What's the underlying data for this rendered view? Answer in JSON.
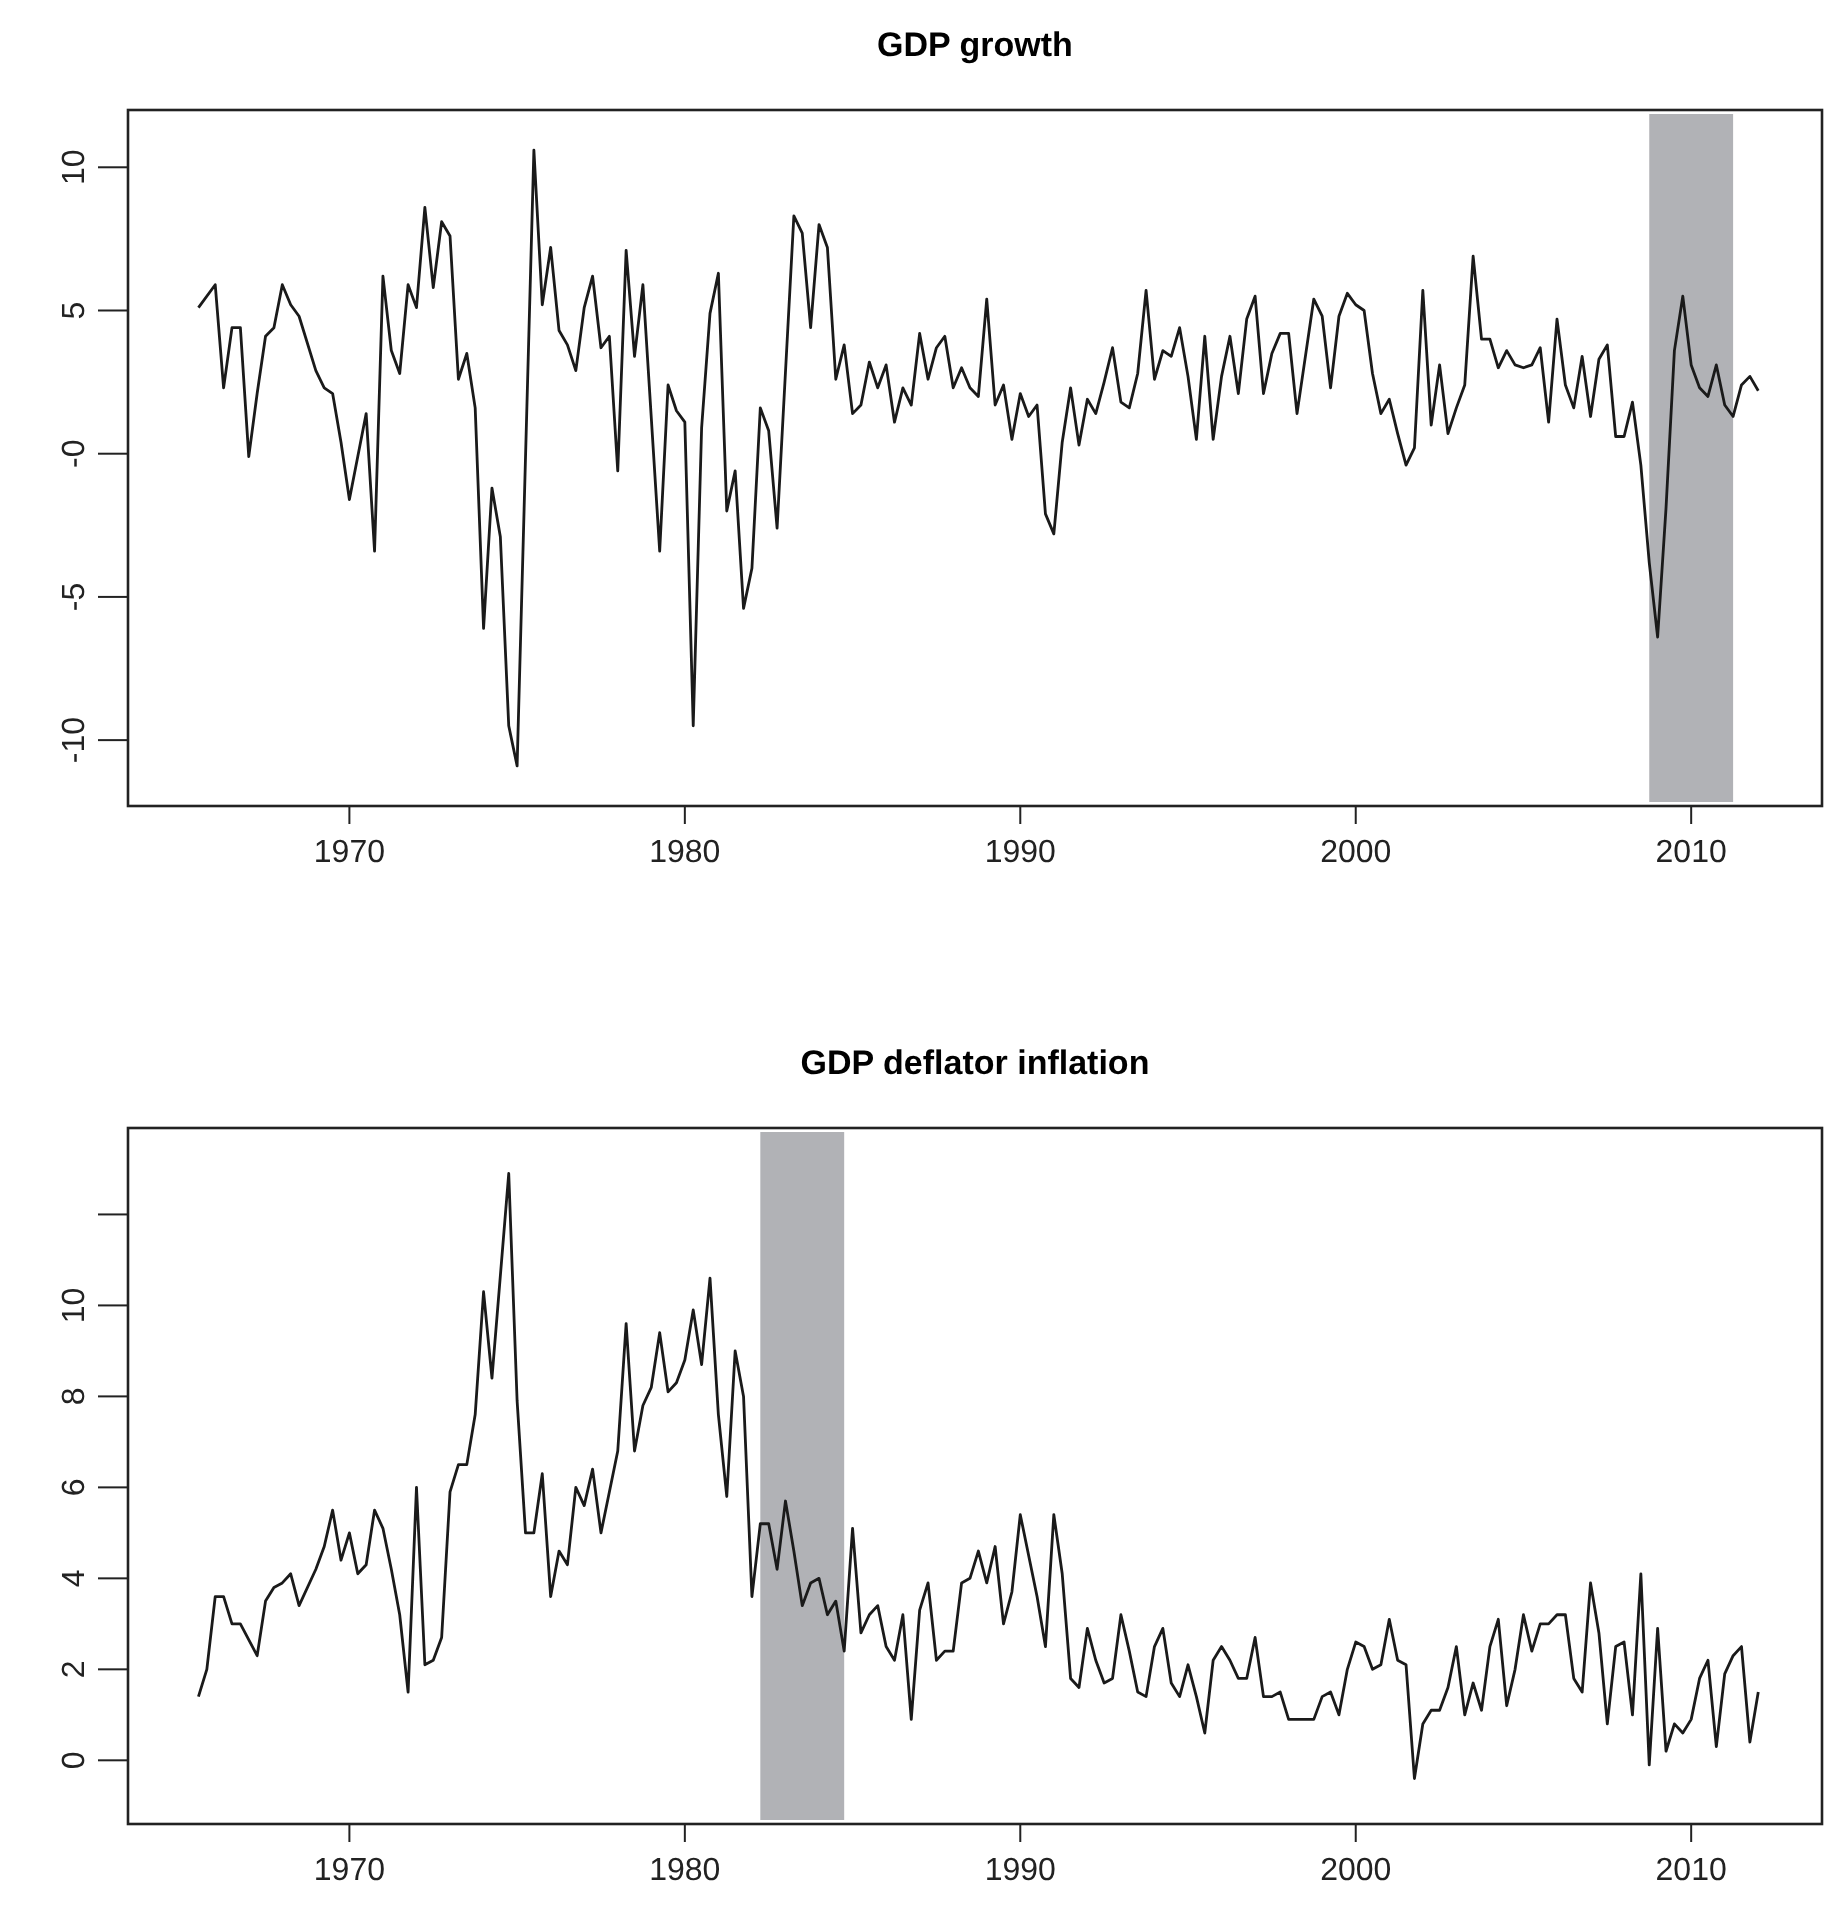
{
  "chart_data": [
    {
      "type": "line",
      "title": "GDP growth",
      "xlim": [
        1963.4,
        2013.9
      ],
      "ylim": [
        -12.3,
        12.0
      ],
      "xticks": [
        1970,
        1980,
        1990,
        2000,
        2010
      ],
      "yticks": [
        10,
        5,
        {
          "value": 0,
          "label": "-0"
        },
        -5,
        -10
      ],
      "bands": [
        {
          "axis": "x",
          "from": 2008.75,
          "to": 2011.25,
          "color": "#b1b2b6"
        }
      ],
      "x": [
        1965.5,
        1966,
        1966.25,
        1966.5,
        1966.75,
        1967,
        1967.25,
        1967.5,
        1967.75,
        1968,
        1968.25,
        1968.5,
        1969,
        1969.25,
        1969.5,
        1969.75,
        1970,
        1970.25,
        1970.5,
        1970.75,
        1971,
        1971.25,
        1971.5,
        1971.75,
        1972,
        1972.25,
        1972.5,
        1972.75,
        1973,
        1973.25,
        1973.5,
        1973.75,
        1974,
        1974.25,
        1974.5,
        1974.75,
        1975,
        1975.5,
        1975.75,
        1976,
        1976.25,
        1976.5,
        1976.75,
        1977,
        1977.25,
        1977.5,
        1977.75,
        1978,
        1978.25,
        1978.5,
        1978.75,
        1979.25,
        1979.5,
        1979.75,
        1980,
        1980.25,
        1980.5,
        1980.75,
        1981,
        1981.25,
        1981.5,
        1981.75,
        1982,
        1982.25,
        1982.5,
        1982.75,
        1983.25,
        1983.5,
        1983.75,
        1984,
        1984.25,
        1984.5,
        1984.75,
        1985,
        1985.25,
        1985.5,
        1985.75,
        1986,
        1986.25,
        1986.5,
        1986.75,
        1987,
        1987.25,
        1987.5,
        1987.75,
        1988,
        1988.25,
        1988.5,
        1988.75,
        1989,
        1989.25,
        1989.5,
        1989.75,
        1990,
        1990.25,
        1990.5,
        1990.75,
        1991,
        1991.25,
        1991.5,
        1991.75,
        1992,
        1992.25,
        1992.5,
        1992.75,
        1993,
        1993.25,
        1993.5,
        1993.75,
        1994,
        1994.25,
        1994.5,
        1994.75,
        1995,
        1995.25,
        1995.5,
        1995.75,
        1996,
        1996.25,
        1996.5,
        1996.75,
        1997,
        1997.25,
        1997.5,
        1997.75,
        1998,
        1998.25,
        1998.75,
        1999,
        1999.25,
        1999.5,
        1999.75,
        2000,
        2000.25,
        2000.5,
        2000.75,
        2001,
        2001.25,
        2001.5,
        2001.75,
        2002,
        2002.25,
        2002.5,
        2002.75,
        2003,
        2003.25,
        2003.5,
        2003.75,
        2004,
        2004.25,
        2004.5,
        2004.75,
        2005,
        2005.25,
        2005.5,
        2005.75,
        2006,
        2006.25,
        2006.5,
        2006.75,
        2007,
        2007.25,
        2007.5,
        2007.75,
        2008,
        2008.25,
        2008.5,
        2008.75,
        2009,
        2009.25,
        2009.5,
        2009.75,
        2010,
        2010.25,
        2010.5,
        2010.75,
        2011,
        2011.25,
        2011.5,
        2011.75,
        2012
      ],
      "series": [
        {
          "color": "#1a1a1a",
          "values": [
            5.1,
            5.9,
            2.3,
            4.4,
            4.4,
            -0.1,
            2.1,
            4.1,
            4.4,
            5.9,
            5.2,
            4.8,
            2.9,
            2.3,
            2.1,
            0.4,
            -1.6,
            -0.1,
            1.4,
            -3.4,
            6.2,
            3.6,
            2.8,
            5.9,
            5.1,
            8.6,
            5.8,
            8.1,
            7.6,
            2.6,
            3.5,
            1.6,
            -6.1,
            -1.2,
            -2.9,
            -9.5,
            -10.9,
            10.6,
            5.2,
            7.2,
            4.3,
            3.8,
            2.9,
            5.1,
            6.2,
            3.7,
            4.1,
            -0.6,
            7.1,
            3.4,
            5.9,
            -3.4,
            2.4,
            1.5,
            1.1,
            -9.5,
            0.9,
            4.9,
            6.3,
            -2.0,
            -0.6,
            -5.4,
            -4.0,
            1.6,
            0.8,
            -2.6,
            8.3,
            7.7,
            4.4,
            8.0,
            7.2,
            2.6,
            3.8,
            1.4,
            1.7,
            3.2,
            2.3,
            3.1,
            1.1,
            2.3,
            1.7,
            4.2,
            2.6,
            3.7,
            4.1,
            2.3,
            3.0,
            2.3,
            2.0,
            5.4,
            1.7,
            2.4,
            0.5,
            2.1,
            1.3,
            1.7,
            -2.1,
            -2.8,
            0.4,
            2.3,
            0.3,
            1.9,
            1.4,
            2.5,
            3.7,
            1.8,
            1.6,
            2.8,
            5.7,
            2.6,
            3.6,
            3.4,
            4.4,
            2.7,
            0.5,
            4.1,
            0.5,
            2.7,
            4.1,
            2.1,
            4.7,
            5.5,
            2.1,
            3.5,
            4.2,
            4.2,
            1.4,
            5.4,
            4.8,
            2.3,
            4.8,
            5.6,
            5.2,
            5.0,
            2.8,
            1.4,
            1.9,
            0.7,
            -0.4,
            0.2,
            5.7,
            1.0,
            3.1,
            0.7,
            1.6,
            2.4,
            6.9,
            4.0,
            4.0,
            3.0,
            3.6,
            3.1,
            3.0,
            3.1,
            3.7,
            1.1,
            4.7,
            2.4,
            1.6,
            3.4,
            1.3,
            3.3,
            3.8,
            0.6,
            0.6,
            1.8,
            -0.4,
            -3.8,
            -6.4,
            -1.9,
            3.6,
            5.5,
            3.1,
            2.3,
            2.0,
            3.1,
            1.7,
            1.3,
            2.4,
            2.7,
            2.2
          ]
        }
      ]
    },
    {
      "type": "line",
      "title": "GDP deflator inflation",
      "xlim": [
        1963.4,
        2013.9
      ],
      "ylim": [
        -1.4,
        13.9
      ],
      "xticks": [
        1970,
        1980,
        1990,
        2000,
        2010
      ],
      "yticks": [
        0,
        2,
        4,
        6,
        8,
        10,
        {
          "value": 12,
          "label": null
        }
      ],
      "bands": [
        {
          "axis": "x",
          "from": 1982.25,
          "to": 1984.75,
          "color": "#b1b2b6"
        }
      ],
      "x": [
        1965.5,
        1965.75,
        1966,
        1966.25,
        1966.5,
        1966.75,
        1967.25,
        1967.5,
        1967.75,
        1968,
        1968.25,
        1968.5,
        1969,
        1969.25,
        1969.5,
        1969.75,
        1970,
        1970.25,
        1970.5,
        1970.75,
        1971,
        1971.25,
        1971.5,
        1971.75,
        1972,
        1972.25,
        1972.5,
        1972.75,
        1973,
        1973.25,
        1973.5,
        1973.75,
        1974,
        1974.25,
        1974.75,
        1975,
        1975.25,
        1975.5,
        1975.75,
        1976,
        1976.25,
        1976.5,
        1976.75,
        1977,
        1977.25,
        1977.5,
        1977.75,
        1978,
        1978.25,
        1978.5,
        1978.75,
        1979,
        1979.25,
        1979.5,
        1979.75,
        1980,
        1980.25,
        1980.5,
        1980.75,
        1981,
        1981.25,
        1981.5,
        1981.75,
        1982,
        1982.25,
        1982.5,
        1982.75,
        1983,
        1983.25,
        1983.5,
        1983.75,
        1984,
        1984.25,
        1984.5,
        1984.75,
        1985,
        1985.25,
        1985.5,
        1985.75,
        1986,
        1986.25,
        1986.5,
        1986.75,
        1987,
        1987.25,
        1987.5,
        1987.75,
        1988,
        1988.25,
        1988.5,
        1988.75,
        1989,
        1989.25,
        1989.5,
        1989.75,
        1990,
        1990.5,
        1990.75,
        1991,
        1991.25,
        1991.5,
        1991.75,
        1992,
        1992.25,
        1992.5,
        1992.75,
        1993,
        1993.25,
        1993.5,
        1993.75,
        1994,
        1994.25,
        1994.5,
        1994.75,
        1995,
        1995.25,
        1995.5,
        1995.75,
        1996,
        1996.25,
        1996.5,
        1996.75,
        1997,
        1997.25,
        1997.5,
        1997.75,
        1998,
        1998.25,
        1998.75,
        1999,
        1999.25,
        1999.5,
        1999.75,
        2000,
        2000.25,
        2000.5,
        2000.75,
        2001,
        2001.25,
        2001.5,
        2001.75,
        2002,
        2002.25,
        2002.5,
        2002.75,
        2003,
        2003.25,
        2003.5,
        2003.75,
        2004,
        2004.25,
        2004.5,
        2004.75,
        2005,
        2005.25,
        2005.5,
        2005.75,
        2006,
        2006.25,
        2006.5,
        2006.75,
        2007,
        2007.25,
        2007.5,
        2007.75,
        2008,
        2008.25,
        2008.5,
        2008.75,
        2009,
        2009.25,
        2009.5,
        2009.75,
        2010,
        2010.25,
        2010.5,
        2010.75,
        2011,
        2011.25,
        2011.5,
        2011.75,
        2012
      ],
      "series": [
        {
          "color": "#1a1a1a",
          "values": [
            1.4,
            2.0,
            3.6,
            3.6,
            3.0,
            3.0,
            2.3,
            3.5,
            3.8,
            3.9,
            4.1,
            3.4,
            4.2,
            4.7,
            5.5,
            4.4,
            5.0,
            4.1,
            4.3,
            5.5,
            5.1,
            4.2,
            3.2,
            1.5,
            6.0,
            2.1,
            2.2,
            2.7,
            5.9,
            6.5,
            6.5,
            7.6,
            10.3,
            8.4,
            12.9,
            7.9,
            5.0,
            5.0,
            6.3,
            3.6,
            4.6,
            4.3,
            6.0,
            5.6,
            6.4,
            5.0,
            5.9,
            6.8,
            9.6,
            6.8,
            7.8,
            8.2,
            9.4,
            8.1,
            8.3,
            8.8,
            9.9,
            8.7,
            10.6,
            7.6,
            5.8,
            9.0,
            8.0,
            3.6,
            5.2,
            5.2,
            4.2,
            5.7,
            4.6,
            3.4,
            3.9,
            4.0,
            3.2,
            3.5,
            2.4,
            5.1,
            2.8,
            3.2,
            3.4,
            2.5,
            2.2,
            3.2,
            0.9,
            3.3,
            3.9,
            2.2,
            2.4,
            2.4,
            3.9,
            4.0,
            4.6,
            3.9,
            4.7,
            3.0,
            3.7,
            5.4,
            3.6,
            2.5,
            5.4,
            4.1,
            1.8,
            1.6,
            2.9,
            2.2,
            1.7,
            1.8,
            3.2,
            2.4,
            1.5,
            1.4,
            2.5,
            2.9,
            1.7,
            1.4,
            2.1,
            1.4,
            0.6,
            2.2,
            2.5,
            2.2,
            1.8,
            1.8,
            2.7,
            1.4,
            1.4,
            1.5,
            0.9,
            0.9,
            0.9,
            1.4,
            1.5,
            1.0,
            2.0,
            2.6,
            2.5,
            2.0,
            2.1,
            3.1,
            2.2,
            2.1,
            -0.4,
            0.8,
            1.1,
            1.1,
            1.6,
            2.5,
            1.0,
            1.7,
            1.1,
            2.5,
            3.1,
            1.2,
            2.0,
            3.2,
            2.4,
            3.0,
            3.0,
            3.2,
            3.2,
            1.8,
            1.5,
            3.9,
            2.8,
            0.8,
            2.5,
            2.6,
            1.0,
            4.1,
            -0.1,
            2.9,
            0.2,
            0.8,
            0.6,
            0.9,
            1.8,
            2.2,
            0.3,
            1.9,
            2.3,
            2.5,
            0.4,
            1.5
          ]
        }
      ]
    }
  ]
}
